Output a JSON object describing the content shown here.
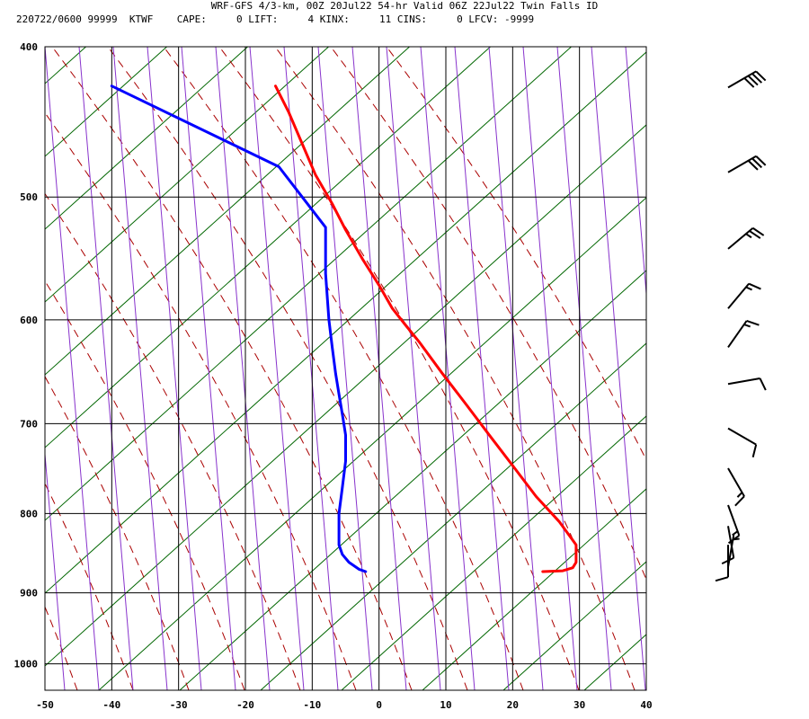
{
  "header": {
    "line1": "WRF-GFS 4/3-km, 00Z 20Jul22 54-hr Valid 06Z 22Jul22 Twin Falls ID",
    "line2": "220722/0600 99999  KTWF    CAPE:     0 LIFT:     4 KINX:     11 CINS:     0 LFCV: -9999"
  },
  "chart_data": {
    "type": "skew-t",
    "x_range": [
      -50,
      40
    ],
    "y_range": [
      400,
      1040
    ],
    "x_ticks": [
      -50,
      -40,
      -30,
      -20,
      -10,
      0,
      10,
      20,
      30,
      40
    ],
    "x_tick_labels": [
      "-50",
      "-40",
      "-30",
      "-20",
      "-10",
      "0",
      "10",
      "20",
      "30",
      "40"
    ],
    "y_ticks": [
      400,
      500,
      600,
      700,
      800,
      900,
      1000
    ],
    "y_tick_labels": [
      "400",
      "500",
      "600",
      "700",
      "800",
      "900",
      "1000"
    ],
    "grid": true,
    "series": [
      {
        "role": "temperature",
        "color": "#ff0000",
        "pressure": [
          872,
          871,
          867,
          860,
          838,
          810,
          780,
          745,
          712,
          680,
          650,
          620,
          605,
          590,
          570,
          548,
          525,
          505,
          484,
          462,
          441,
          424
        ],
        "x": [
          24.5,
          27.5,
          29.0,
          29.5,
          29.5,
          27.0,
          23.5,
          20.0,
          16.5,
          13.0,
          9.5,
          6.0,
          4.0,
          2.0,
          0.0,
          -2.5,
          -5.0,
          -7.0,
          -9.5,
          -11.5,
          -13.5,
          -15.5
        ]
      },
      {
        "role": "dewpoint",
        "color": "#0000ff",
        "pressure": [
          872,
          869,
          860,
          850,
          838,
          800,
          770,
          740,
          712,
          690,
          670,
          650,
          625,
          600,
          560,
          545,
          523,
          500,
          478,
          424
        ],
        "x": [
          -2.0,
          -3.0,
          -4.5,
          -5.5,
          -6.0,
          -6.0,
          -5.5,
          -5.0,
          -5.0,
          -5.5,
          -6.0,
          -6.5,
          -7.0,
          -7.5,
          -8.0,
          -8.0,
          -8.0,
          -11.5,
          -15.0,
          -40.0
        ]
      }
    ],
    "background_lines": {
      "dry_adiabat_color": "#006600",
      "moist_adiabat_color": "#aa0000",
      "mixing_ratio_color": "#8833cc"
    },
    "wind_barbs": {
      "color": "#000000",
      "pressure": [
        425,
        482,
        540,
        590,
        625,
        660,
        705,
        748,
        790,
        815,
        838,
        866
      ],
      "direction_deg": [
        240,
        240,
        230,
        220,
        215,
        260,
        300,
        330,
        340,
        350,
        360,
        190
      ],
      "speed_kt": [
        40,
        30,
        25,
        15,
        15,
        10,
        10,
        15,
        15,
        10,
        10,
        5
      ]
    }
  }
}
